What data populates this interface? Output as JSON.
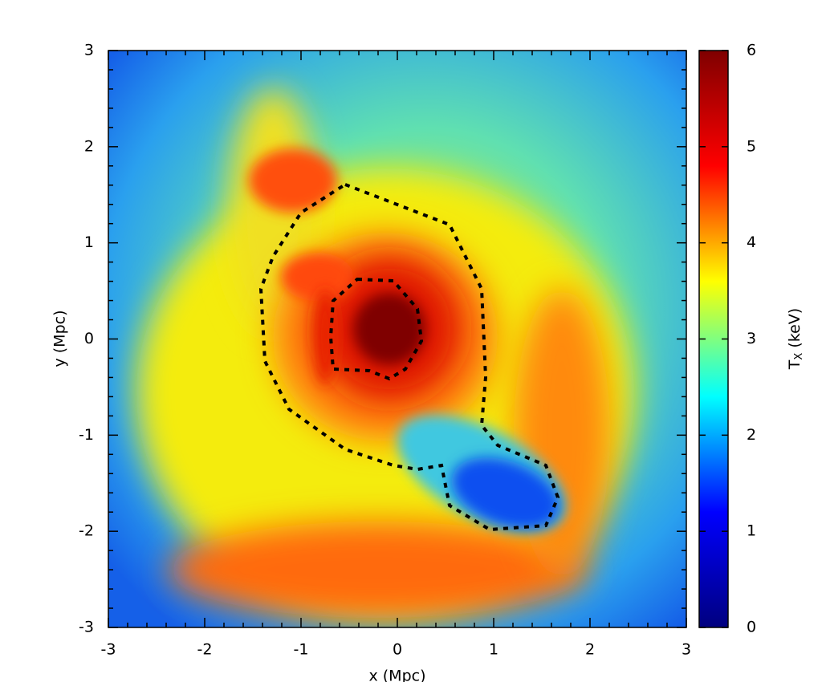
{
  "chart_data": {
    "type": "heatmap",
    "xlabel": "x (Mpc)",
    "ylabel": "y (Mpc)",
    "xlim": [
      -3,
      3
    ],
    "ylim": [
      -3,
      3
    ],
    "xticks": [
      -3,
      -2,
      -1,
      0,
      1,
      2,
      3
    ],
    "yticks": [
      -3,
      -2,
      -1,
      0,
      1,
      2,
      3
    ],
    "colorbar": {
      "label": "T",
      "label_sub": "X",
      "label_unit": "(keV)",
      "clim": [
        0,
        6
      ],
      "ticks": [
        0,
        1,
        2,
        3,
        4,
        5,
        6
      ],
      "colormap": [
        "#00007f",
        "#0000ff",
        "#00ffff",
        "#ffff00",
        "#ff0000",
        "#7f0000"
      ]
    }
  }
}
